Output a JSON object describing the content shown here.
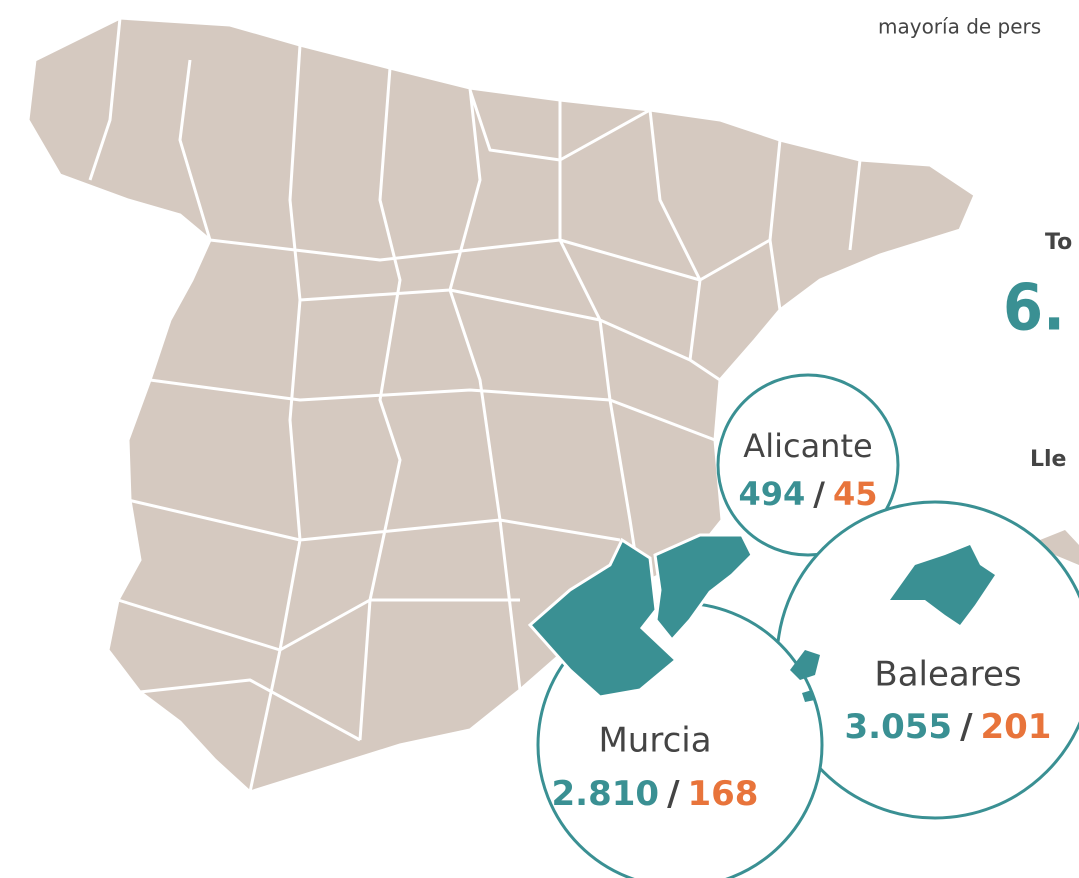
{
  "intro_fragment": "mayoría de pers",
  "total_label": "To",
  "total_value": "6.",
  "arrivals_label": "Lle",
  "separator": "/",
  "regions": [
    {
      "name": "Alicante",
      "value_a": "494",
      "value_b": "45"
    },
    {
      "name": "Baleares",
      "value_a": "3.055",
      "value_b": "201"
    },
    {
      "name": "Murcia",
      "value_a": "2.810",
      "value_b": "168"
    }
  ]
}
